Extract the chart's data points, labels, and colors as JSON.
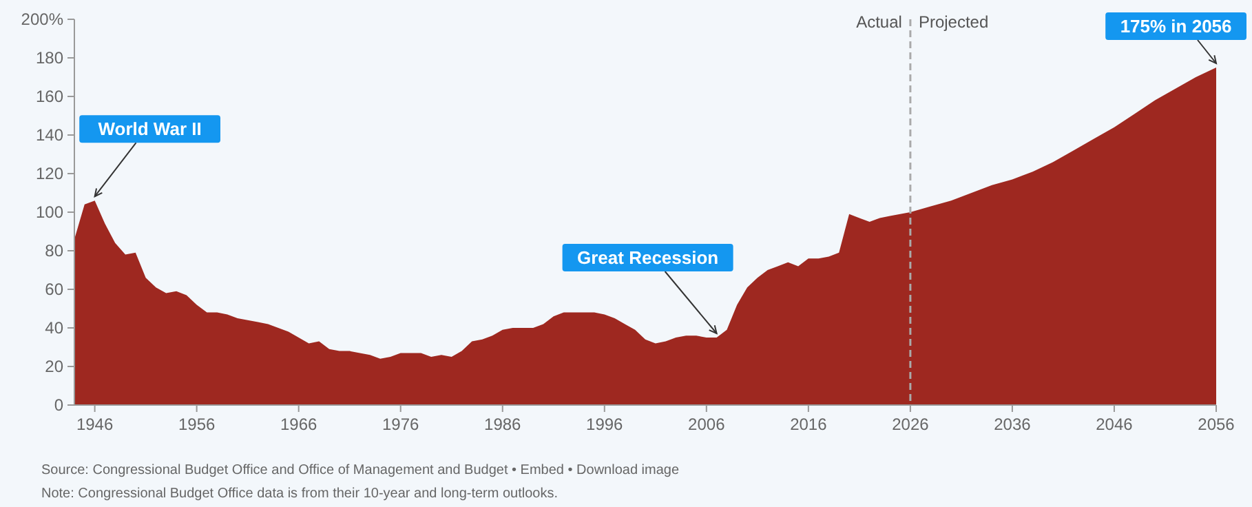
{
  "chart_data": {
    "type": "area",
    "x": [
      1944,
      1945,
      1946,
      1947,
      1948,
      1949,
      1950,
      1951,
      1952,
      1953,
      1954,
      1955,
      1956,
      1957,
      1958,
      1959,
      1960,
      1961,
      1962,
      1963,
      1964,
      1965,
      1966,
      1967,
      1968,
      1969,
      1970,
      1971,
      1972,
      1973,
      1974,
      1975,
      1976,
      1977,
      1978,
      1979,
      1980,
      1981,
      1982,
      1983,
      1984,
      1985,
      1986,
      1987,
      1988,
      1989,
      1990,
      1991,
      1992,
      1993,
      1994,
      1995,
      1996,
      1997,
      1998,
      1999,
      2000,
      2001,
      2002,
      2003,
      2004,
      2005,
      2006,
      2007,
      2008,
      2009,
      2010,
      2011,
      2012,
      2013,
      2014,
      2015,
      2016,
      2017,
      2018,
      2019,
      2020,
      2021,
      2022,
      2023,
      2024,
      2025,
      2026,
      2028,
      2030,
      2032,
      2034,
      2036,
      2038,
      2040,
      2042,
      2044,
      2046,
      2048,
      2050,
      2052,
      2054,
      2056
    ],
    "series": [
      {
        "color": "#9e2820",
        "values": [
          86,
          104,
          106,
          94,
          84,
          78,
          79,
          66,
          61,
          58,
          59,
          57,
          52,
          48,
          48,
          47,
          45,
          44,
          43,
          42,
          40,
          38,
          35,
          32,
          33,
          29,
          28,
          28,
          27,
          26,
          24,
          25,
          27,
          27,
          27,
          25,
          26,
          25,
          28,
          33,
          34,
          36,
          39,
          40,
          40,
          40,
          42,
          46,
          48,
          48,
          48,
          48,
          47,
          45,
          42,
          39,
          34,
          32,
          33,
          35,
          36,
          36,
          35,
          35,
          39,
          52,
          61,
          66,
          70,
          72,
          74,
          72,
          76,
          76,
          77,
          79,
          99,
          97,
          95,
          97,
          98,
          99,
          100,
          103,
          106,
          110,
          114,
          117,
          121,
          126,
          132,
          138,
          144,
          151,
          158,
          164,
          170,
          175
        ]
      }
    ],
    "xlim": [
      1944,
      2056
    ],
    "xticks": [
      1946,
      1956,
      1966,
      1976,
      1986,
      1996,
      2006,
      2016,
      2026,
      2036,
      2046,
      2056
    ],
    "ylim": [
      0,
      200
    ],
    "yticks": [
      0,
      20,
      40,
      60,
      80,
      100,
      120,
      140,
      160,
      180,
      {
        "value": 200,
        "label": "200%"
      }
    ],
    "grid": false,
    "ref_lines": [
      {
        "axis": "x",
        "value": 2026,
        "label": "Actual",
        "line_style": "dashed",
        "color": "#aaaaaa"
      }
    ],
    "annotations": [
      {
        "text": "Projected",
        "x": 2026,
        "y": 200
      },
      {
        "text": "World War II",
        "x": 1946,
        "y": 106
      },
      {
        "text": "Great Recession",
        "x": 2007,
        "y": 35
      },
      {
        "text": "175% in 2056",
        "x": 2056,
        "y": 175
      },
      "Source: Congressional Budget Office and Office of Management and Budget • Embed • Download image",
      "Note: Congressional Budget Office data is from their 10-year and long-term outlooks."
    ]
  }
}
